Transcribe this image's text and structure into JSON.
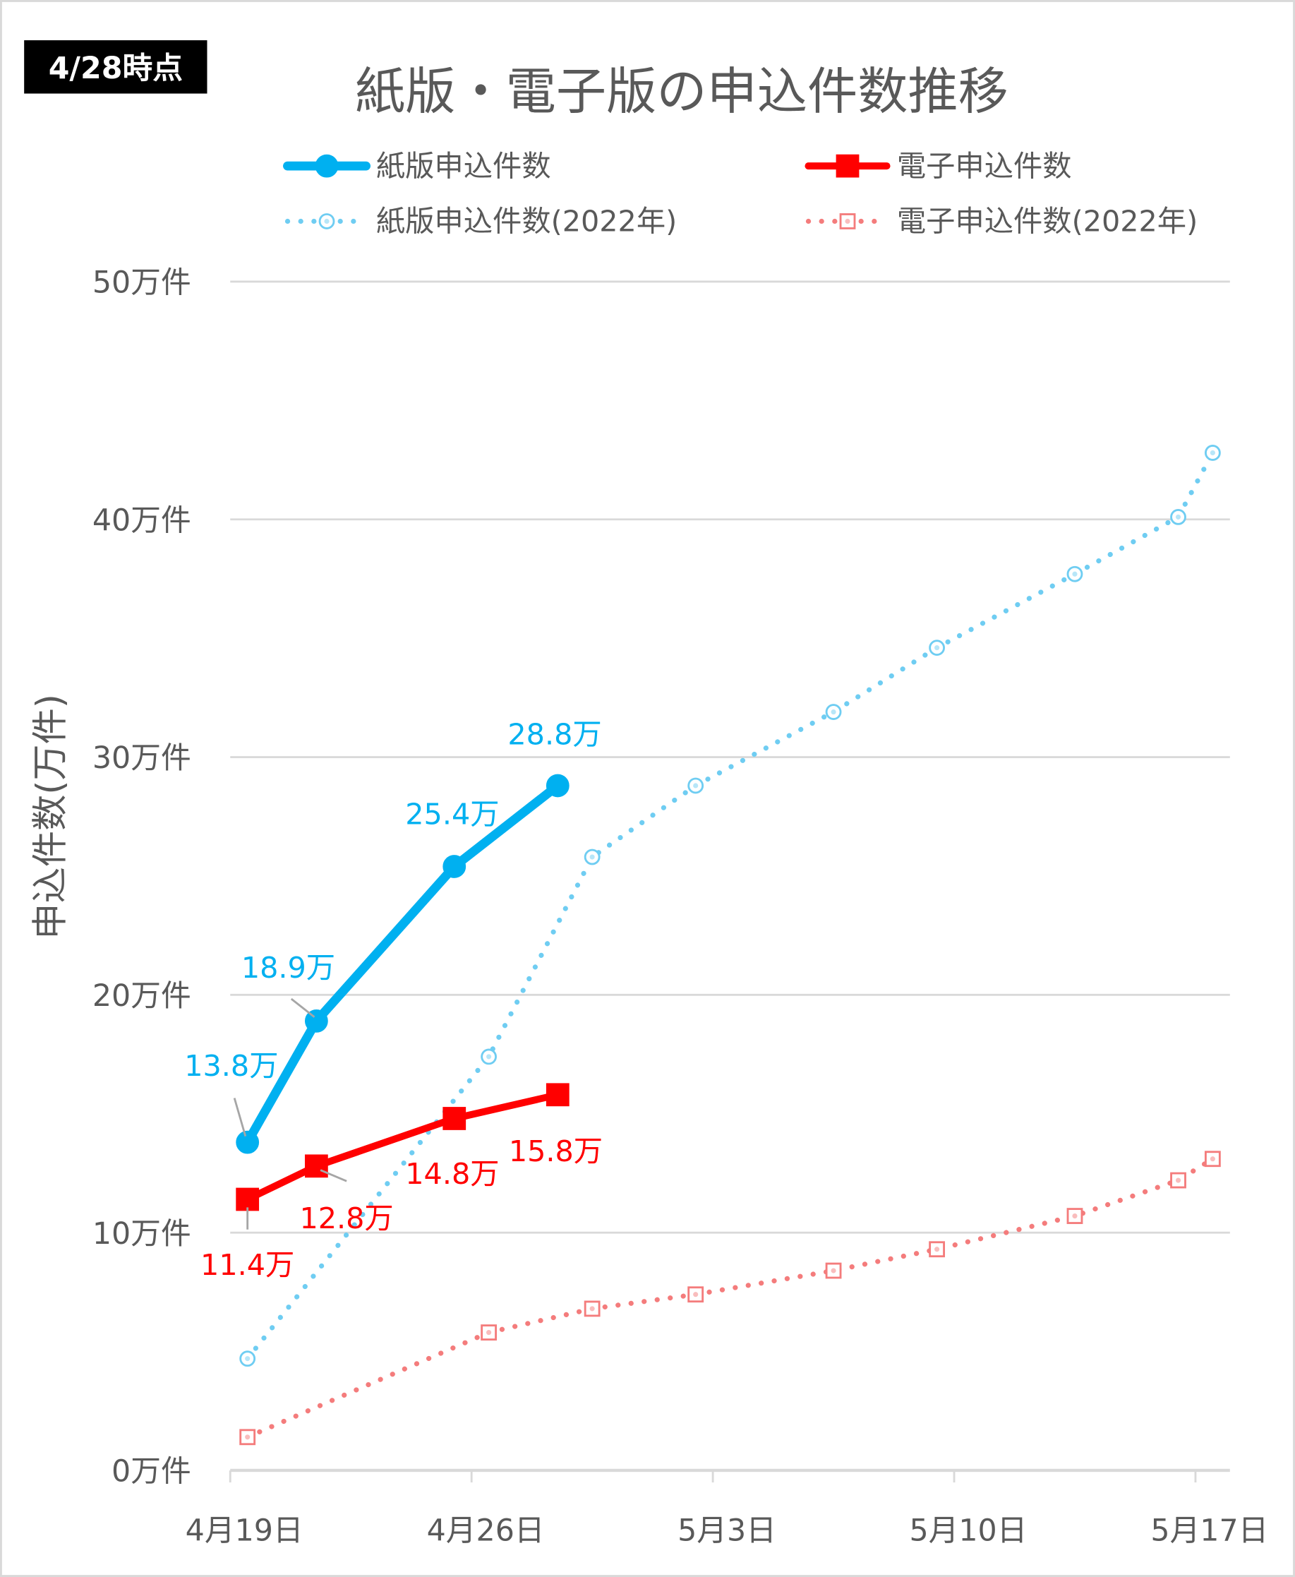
{
  "badge": "4/28時点",
  "chart_data": {
    "type": "line",
    "title": "紙版・電子版の申込件数推移",
    "xlabel": "",
    "ylabel": "申込件数(万件)",
    "ylim": [
      0,
      50
    ],
    "yticks": [
      0,
      10,
      20,
      30,
      40,
      50
    ],
    "ytick_labels": [
      "0万件",
      "10万件",
      "20万件",
      "30万件",
      "40万件",
      "50万件"
    ],
    "xlim": [
      "4/19",
      "5/18"
    ],
    "xtick_labels": [
      "4月19日",
      "4月26日",
      "5月3日",
      "5月10日",
      "5月17日"
    ],
    "xticks": [
      "4/19",
      "4/26",
      "5/3",
      "5/10",
      "5/17"
    ],
    "grid": true,
    "legend": "top",
    "colors": {
      "paper": "#00B0F0",
      "electronic": "#FF0000",
      "paper2022": "#6FCDF2",
      "electronic2022": "#F47C7C"
    },
    "series": [
      {
        "name": "紙版申込件数",
        "style": "solid-circle",
        "x": [
          "4/19",
          "4/21",
          "4/25",
          "4/28"
        ],
        "values": [
          13.8,
          18.9,
          25.4,
          28.8
        ],
        "labels": [
          "13.8万",
          "18.9万",
          "25.4万",
          "28.8万"
        ]
      },
      {
        "name": "電子申込件数",
        "style": "solid-square",
        "x": [
          "4/19",
          "4/21",
          "4/25",
          "4/28"
        ],
        "values": [
          11.4,
          12.8,
          14.8,
          15.8
        ],
        "labels": [
          "11.4万",
          "12.8万",
          "14.8万",
          "15.8万"
        ]
      },
      {
        "name": "紙版申込件数(2022年)",
        "style": "dotted-open-circle",
        "x": [
          "4/19",
          "4/26",
          "4/29",
          "5/2",
          "5/6",
          "5/9",
          "5/13",
          "5/16",
          "5/17"
        ],
        "values": [
          4.7,
          17.4,
          25.8,
          28.8,
          31.9,
          34.6,
          37.7,
          40.1,
          42.8
        ]
      },
      {
        "name": "電子申込件数(2022年)",
        "style": "dotted-open-square",
        "x": [
          "4/19",
          "4/26",
          "4/29",
          "5/2",
          "5/6",
          "5/9",
          "5/13",
          "5/16",
          "5/17"
        ],
        "values": [
          1.4,
          5.8,
          6.8,
          7.4,
          8.4,
          9.3,
          10.7,
          12.2,
          13.1
        ]
      }
    ]
  }
}
